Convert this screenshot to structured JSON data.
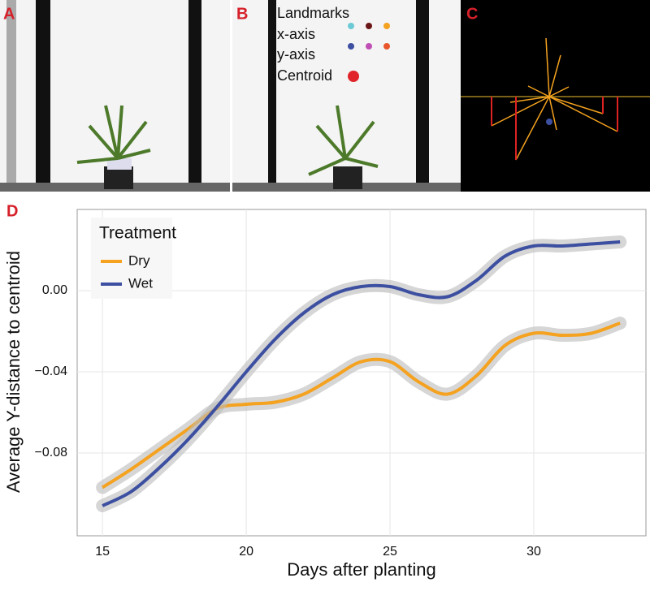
{
  "panels": {
    "a": "A",
    "b": "B",
    "c": "C",
    "d": "D"
  },
  "landmarks_legend": {
    "title": "Landmarks",
    "items": [
      "x-axis",
      "y-axis",
      "Centroid"
    ]
  },
  "chart_data": {
    "type": "line",
    "xlabel": "Days after planting",
    "ylabel": "Average Y-distance to centroid",
    "legend_title": "Treatment",
    "legend": "top-left",
    "grid": true,
    "x": [
      15,
      16,
      17,
      18,
      19,
      20,
      21,
      22,
      23,
      24,
      25,
      26,
      27,
      28,
      29,
      30,
      31,
      32,
      33
    ],
    "series": [
      {
        "name": "Dry",
        "color": "#f4a21f",
        "values": [
          -0.097,
          -0.088,
          -0.078,
          -0.068,
          -0.058,
          -0.056,
          -0.055,
          -0.051,
          -0.043,
          -0.035,
          -0.035,
          -0.045,
          -0.051,
          -0.042,
          -0.027,
          -0.021,
          -0.022,
          -0.021,
          -0.016
        ]
      },
      {
        "name": "Wet",
        "color": "#3c4fa0",
        "values": [
          -0.106,
          -0.099,
          -0.087,
          -0.073,
          -0.057,
          -0.04,
          -0.024,
          -0.011,
          -0.002,
          0.002,
          0.002,
          -0.002,
          -0.003,
          0.005,
          0.017,
          0.022,
          0.022,
          0.023,
          0.024
        ]
      }
    ],
    "xlim": [
      14.12,
      33.9
    ],
    "xticks": [
      15,
      20,
      25,
      30
    ],
    "ylim": [
      -0.1208,
      0.04
    ],
    "yticks": [
      {
        "value": -0.08,
        "label": "−0.08"
      },
      {
        "value": -0.04,
        "label": "−0.04"
      },
      {
        "value": 0,
        "label": "0.00"
      }
    ]
  }
}
